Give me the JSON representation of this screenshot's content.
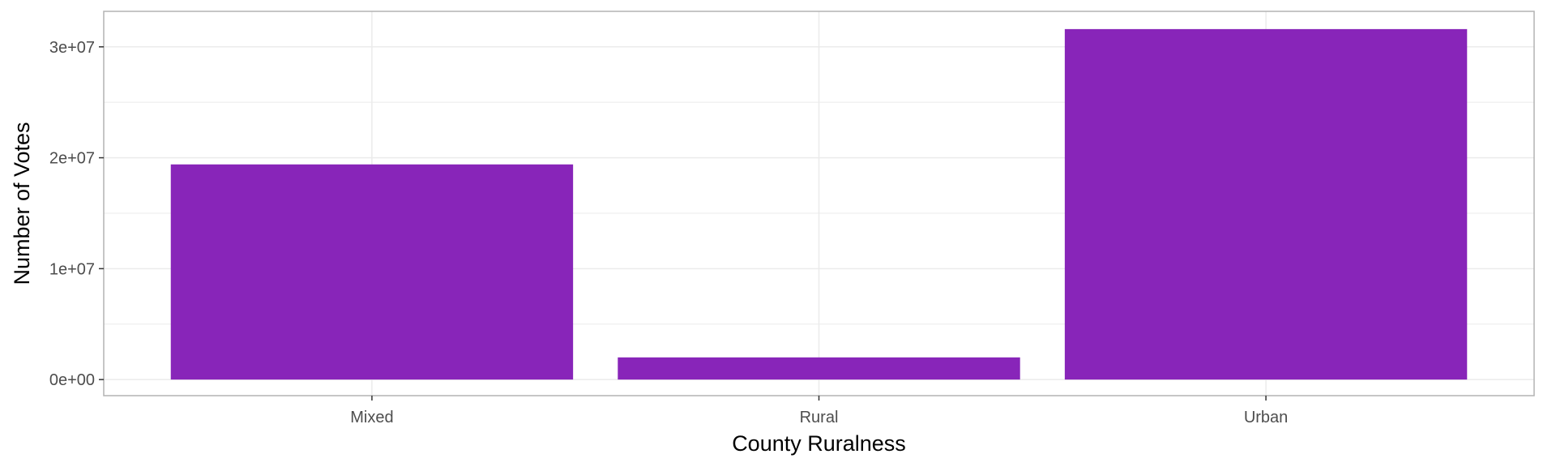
{
  "chart_data": {
    "type": "bar",
    "title": "",
    "xlabel": "County Ruralness",
    "ylabel": "Number of Votes",
    "categories": [
      "Mixed",
      "Rural",
      "Urban"
    ],
    "values": [
      19400000,
      2000000,
      31600000
    ],
    "ylim": [
      -1450000,
      33200000
    ],
    "yticks": [
      0,
      10000000,
      20000000,
      30000000
    ],
    "ytick_labels": [
      "0e+00",
      "1e+07",
      "2e+07",
      "3e+07"
    ],
    "grid": true,
    "legend": "none",
    "bar_color": "#8825B9",
    "grid_color": "#EBEBEB",
    "panel_border_color": "#B3B3B3"
  }
}
